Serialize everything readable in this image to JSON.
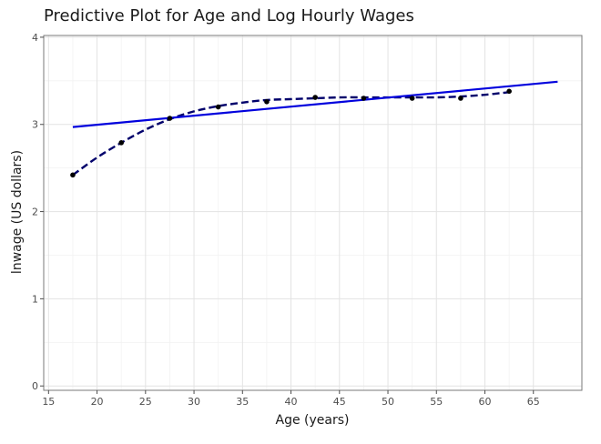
{
  "chart_data": {
    "type": "line",
    "title": "Predictive Plot for Age and Log Hourly Wages",
    "xlabel": "Age (years)",
    "ylabel": "lnwage (US dollars)",
    "xlim": [
      14.5,
      70.0
    ],
    "ylim": [
      -0.05,
      4.02
    ],
    "xticks": [
      15,
      20,
      25,
      30,
      35,
      40,
      45,
      50,
      55,
      60,
      65
    ],
    "yticks": [
      0,
      1,
      2,
      3,
      4
    ],
    "grid": true,
    "series": [
      {
        "kind": "points",
        "color": "#000000",
        "x": [
          17.5,
          22.5,
          27.5,
          32.5,
          37.5,
          42.5,
          47.5,
          52.5,
          57.5,
          62.5
        ],
        "y": [
          2.42,
          2.79,
          3.07,
          3.2,
          3.26,
          3.31,
          3.3,
          3.3,
          3.3,
          3.38
        ]
      },
      {
        "kind": "dashed-smooth",
        "color": "#00006b",
        "x": [
          17.5,
          20,
          22.5,
          25,
          27.5,
          30,
          32.5,
          35,
          37.5,
          40,
          42.5,
          45,
          47.5,
          50,
          52.5,
          55,
          57.5,
          60,
          62.5
        ],
        "y": [
          2.42,
          2.62,
          2.79,
          2.94,
          3.06,
          3.15,
          3.21,
          3.25,
          3.28,
          3.29,
          3.3,
          3.31,
          3.31,
          3.31,
          3.31,
          3.31,
          3.32,
          3.34,
          3.37
        ]
      },
      {
        "kind": "linear-fit",
        "color": "#0000dd",
        "x": [
          17.5,
          67.5
        ],
        "y": [
          2.97,
          3.49
        ]
      }
    ]
  }
}
